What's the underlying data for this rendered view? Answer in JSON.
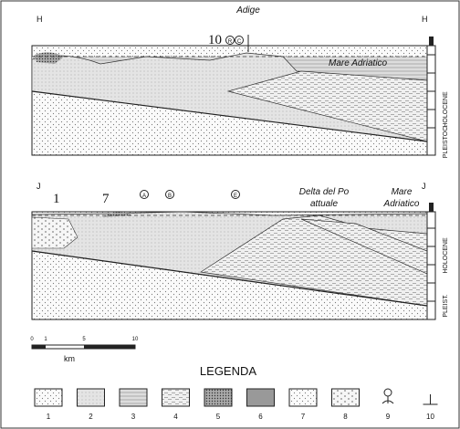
{
  "sections": [
    {
      "left_label": "H",
      "right_label": "H",
      "well_number": "10",
      "circled": [
        "R",
        "C"
      ],
      "river": "Adige",
      "sea": "Mare Adriatico",
      "epochs": [
        "HOLOCENE",
        "PLEISTOC."
      ]
    },
    {
      "left_label": "J",
      "right_label": "J",
      "well_numbers": [
        "1",
        "7"
      ],
      "circled": [
        "A",
        "B",
        "E"
      ],
      "delta": [
        "Delta del Po",
        "attuale"
      ],
      "sea": [
        "Mare",
        "Adriatico"
      ],
      "epochs": [
        "HOLOCENE",
        "PLEIST."
      ]
    }
  ],
  "scale": {
    "ticks": [
      "0",
      "1",
      "5",
      "10"
    ],
    "unit": "km"
  },
  "legend": {
    "title": "LEGENDA",
    "items": [
      "1",
      "2",
      "3",
      "4",
      "5",
      "6",
      "7",
      "8",
      "9",
      "10"
    ]
  }
}
